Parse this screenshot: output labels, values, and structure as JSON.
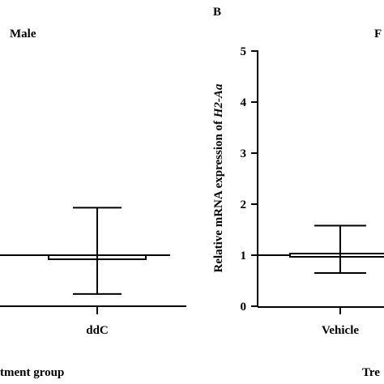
{
  "chart_data": [
    {
      "panel_letter": "",
      "title": "Male",
      "type": "bar",
      "categories": [
        "ddC"
      ],
      "ylabel": "",
      "xlabel": "tment group",
      "baseline": 1.0,
      "ylim": [
        0,
        5
      ],
      "values": [
        0.92
      ],
      "error_upper": [
        1.93
      ],
      "error_lower": [
        0.24
      ]
    },
    {
      "panel_letter": "B",
      "title": "F",
      "type": "bar",
      "categories": [
        "Vehicle"
      ],
      "ylabel_prefix": "Relative mRNA expression of ",
      "ylabel_gene": "H2-Aa",
      "xlabel": "Tre",
      "baseline": 1.0,
      "ylim": [
        0,
        5
      ],
      "yticks": [
        "0",
        "1",
        "2",
        "3",
        "4",
        "5"
      ],
      "values": [
        1.05
      ],
      "error_upper": [
        1.58
      ],
      "error_lower": [
        0.65
      ]
    }
  ]
}
